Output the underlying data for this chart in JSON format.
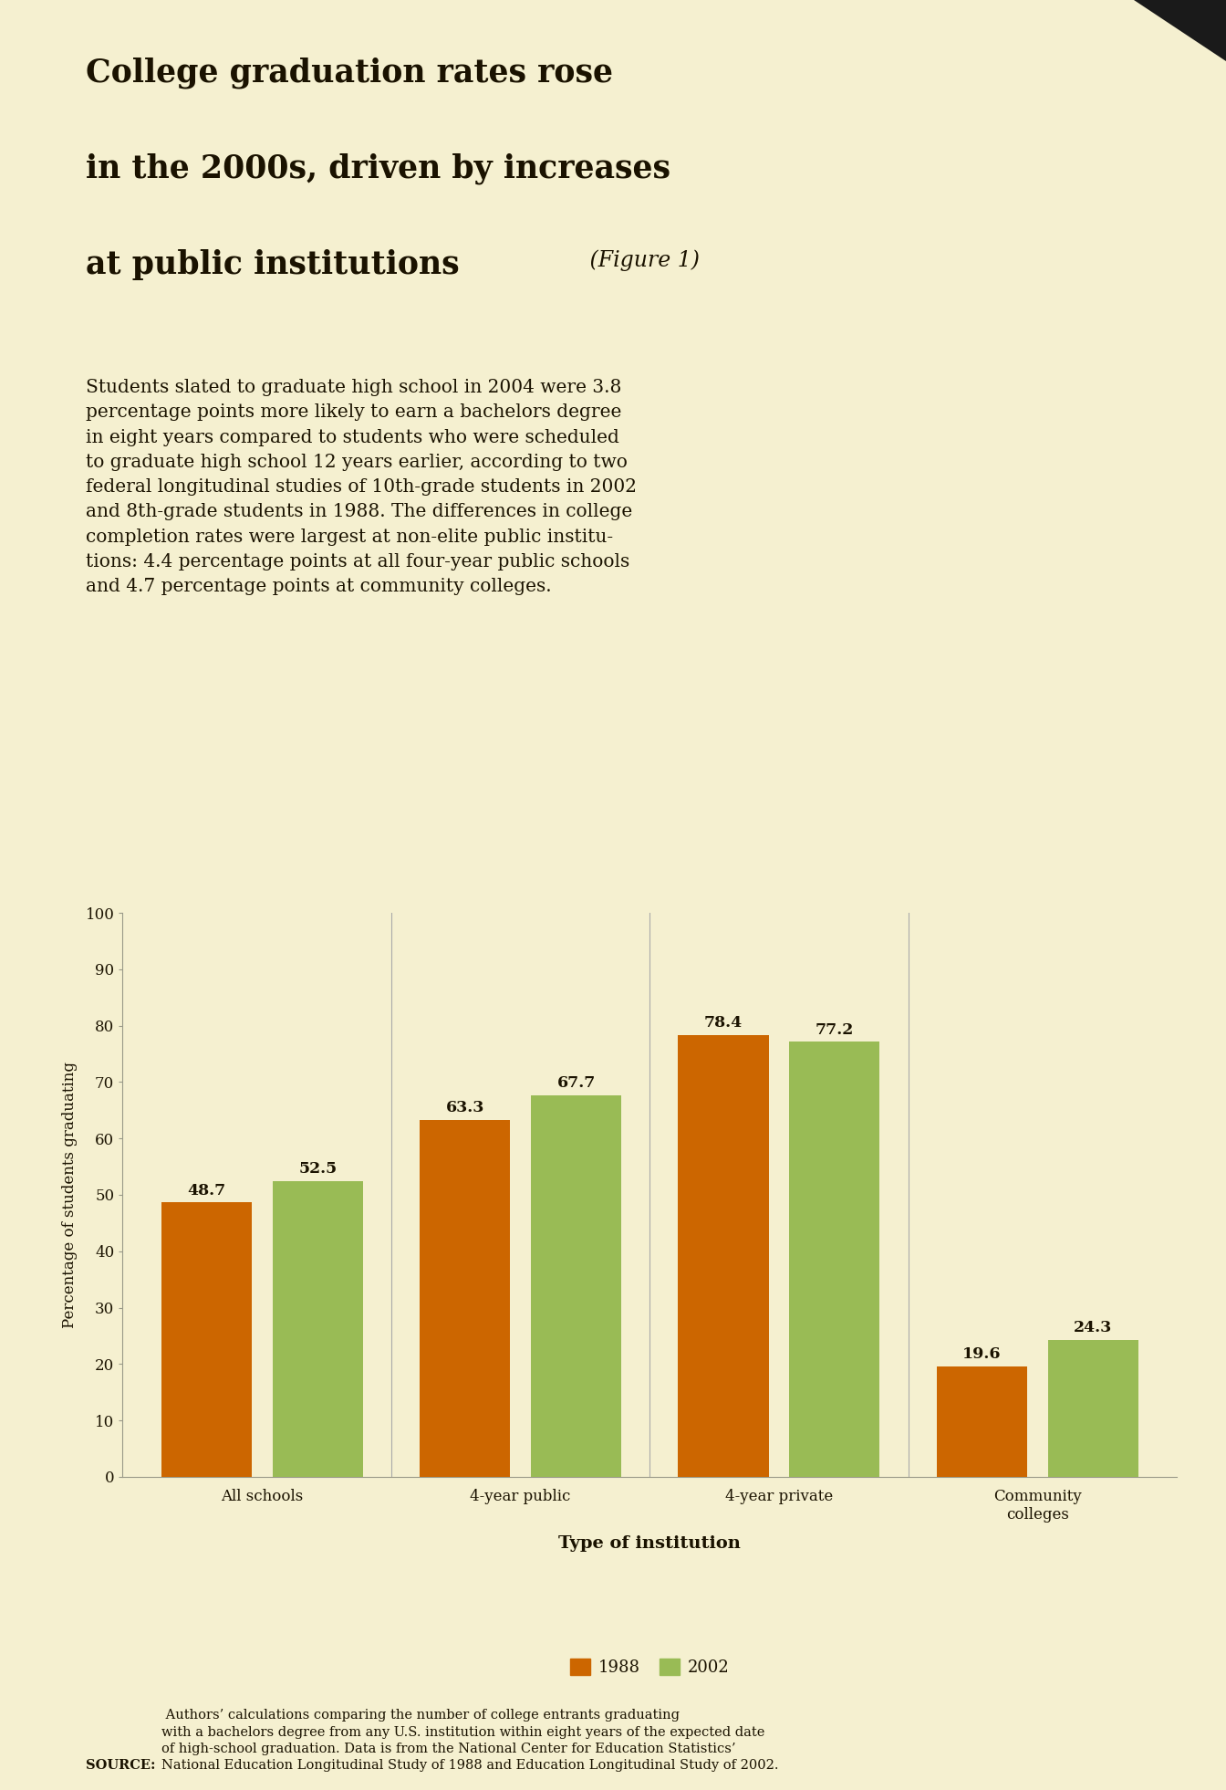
{
  "title_line1": "College graduation rates rose",
  "title_line2": "in the 2000s, driven by increases",
  "title_line3_bold": "at public institutions",
  "title_line3_italic": " (Figure 1)",
  "body_text": "Students slated to graduate high school in 2004 were 3.8\npercentage points more likely to earn a bachelors degree\nin eight years compared to students who were scheduled\nto graduate high school 12 years earlier, according to two\nfederal longitudinal studies of 10th-grade students in 2002\nand 8th-grade students in 1988. The differences in college\ncompletion rates were largest at non-elite public institu-\ntions: 4.4 percentage points at all four-year public schools\nand 4.7 percentage points at community colleges.",
  "categories": [
    "All schools",
    "4-year public",
    "4-year private",
    "Community\ncolleges"
  ],
  "values_1988": [
    48.7,
    63.3,
    78.4,
    19.6
  ],
  "values_2002": [
    52.5,
    67.7,
    77.2,
    24.3
  ],
  "color_1988": "#cc6600",
  "color_2002": "#99bb55",
  "xlabel": "Type of institution",
  "ylabel": "Percentage of students graduating",
  "ylim": [
    0,
    100
  ],
  "yticks": [
    0,
    10,
    20,
    30,
    40,
    50,
    60,
    70,
    80,
    90,
    100
  ],
  "legend_labels": [
    "1988",
    "2002"
  ],
  "source_bold": "SOURCE:",
  "source_text": " Authors’ calculations comparing the number of college entrants graduating\nwith a bachelors degree from any U.S. institution within eight years of the expected date\nof high-school graduation. Data is from the National Center for Education Statistics’\nNational Education Longitudinal Study of 1988 and Education Longitudinal Study of 2002.",
  "header_bg": "#dde5cc",
  "chart_bg": "#f5f0d0",
  "outer_bg": "#f5f0d0",
  "bar_width": 0.35,
  "bar_gap": 0.08,
  "value_fontsize": 12.5,
  "axis_tick_fontsize": 12,
  "ylabel_fontsize": 12,
  "xlabel_fontsize": 14,
  "source_fontsize": 10.5,
  "legend_fontsize": 13,
  "title_fontsize": 25,
  "body_fontsize": 14.5
}
